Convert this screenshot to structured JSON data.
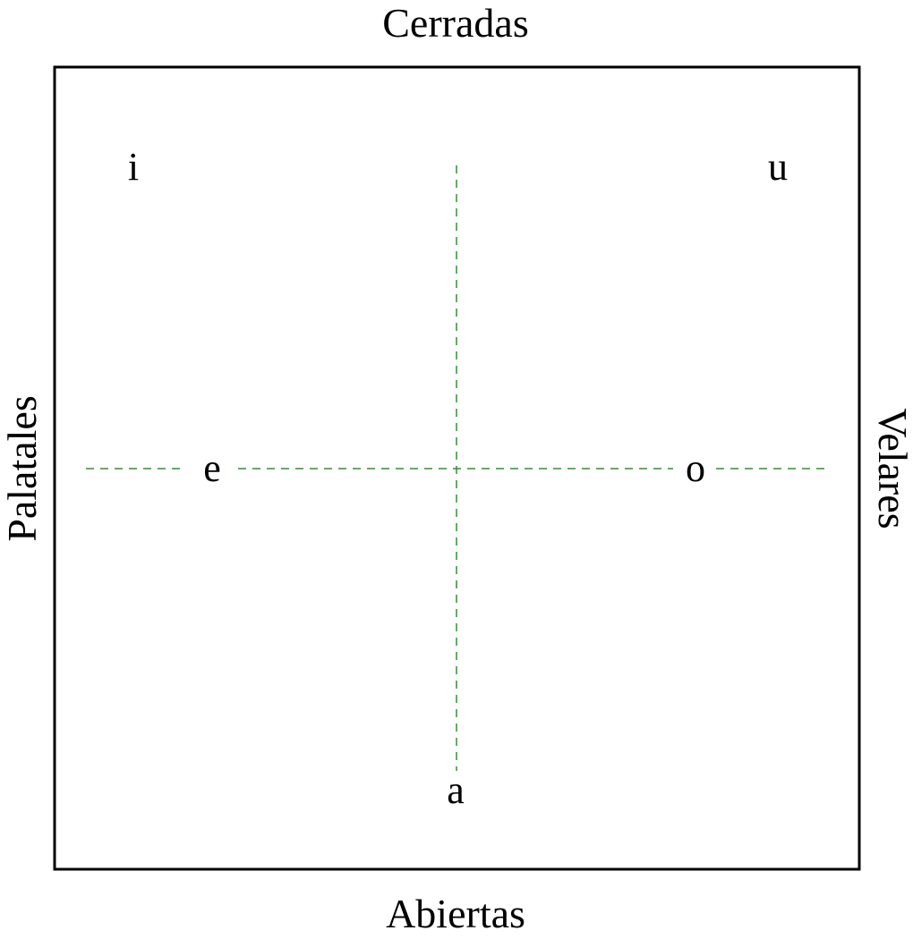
{
  "diagram": {
    "labels": {
      "top": "Cerradas",
      "bottom": "Abiertas",
      "left": "Palatales",
      "right": "Velares"
    },
    "vowels": {
      "i": "i",
      "u": "u",
      "e": "e",
      "o": "o",
      "a": "a"
    },
    "colors": {
      "frame": "#000000",
      "guide": "#3a8a3a",
      "text": "#000000"
    }
  }
}
